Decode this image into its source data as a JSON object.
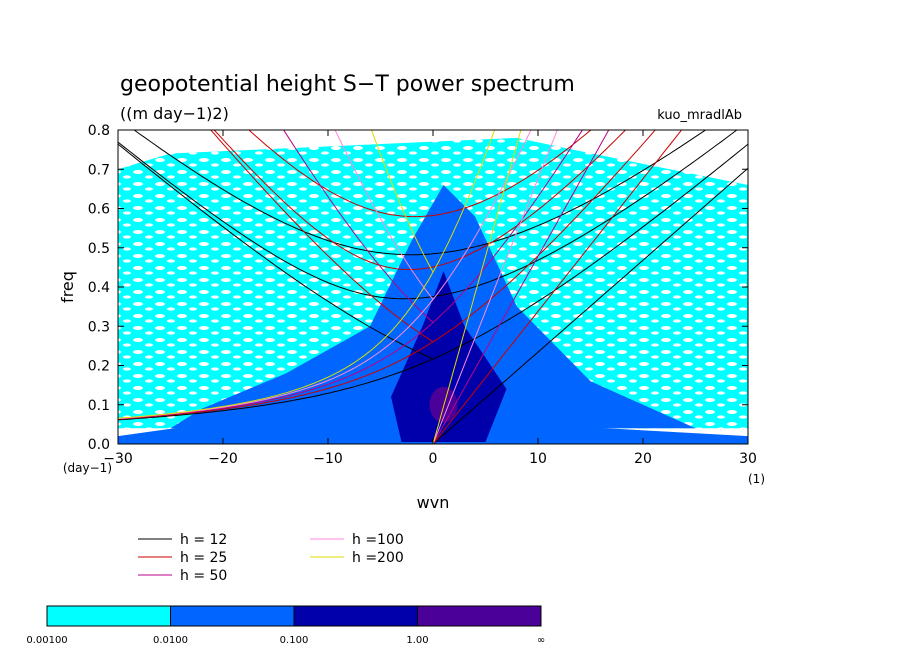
{
  "chart_data": {
    "type": "heatmap",
    "title": "geopotential height S−T power spectrum",
    "subtitle": "((m day−1)2)",
    "run_label": "kuo_mradlAb",
    "xlabel": "wvn",
    "ylabel": "freq",
    "x_unit": "(1)",
    "y_unit": "(day−1)",
    "xlim": [
      -30,
      30
    ],
    "ylim": [
      0,
      0.8
    ],
    "x_ticks": [
      -30,
      -20,
      -10,
      0,
      10,
      20,
      30
    ],
    "y_ticks": [
      0.0,
      0.1,
      0.2,
      0.3,
      0.4,
      0.5,
      0.6,
      0.7,
      0.8
    ],
    "x_tick_labels": [
      "−30",
      "−20",
      "−10",
      "0",
      "10",
      "20",
      "30"
    ],
    "y_tick_labels": [
      "0.0",
      "0.1",
      "0.2",
      "0.3",
      "0.4",
      "0.5",
      "0.6",
      "0.7",
      "0.8"
    ],
    "contour_levels": {
      "boundaries": [
        "0.00100",
        "0.0100",
        "0.100",
        "1.00",
        "∞"
      ],
      "colors": [
        "#00ffff",
        "#0066ff",
        "#0000aa",
        "#4b0099"
      ]
    },
    "dispersion_curves": [
      {
        "name": "h = 12",
        "color": "#000000"
      },
      {
        "name": "h = 25",
        "color": "#cc0000"
      },
      {
        "name": "h = 50",
        "color": "#bb0088"
      },
      {
        "name": "h =100",
        "color": "#ff88dd"
      },
      {
        "name": "h =200",
        "color": "#dddd00"
      }
    ]
  }
}
